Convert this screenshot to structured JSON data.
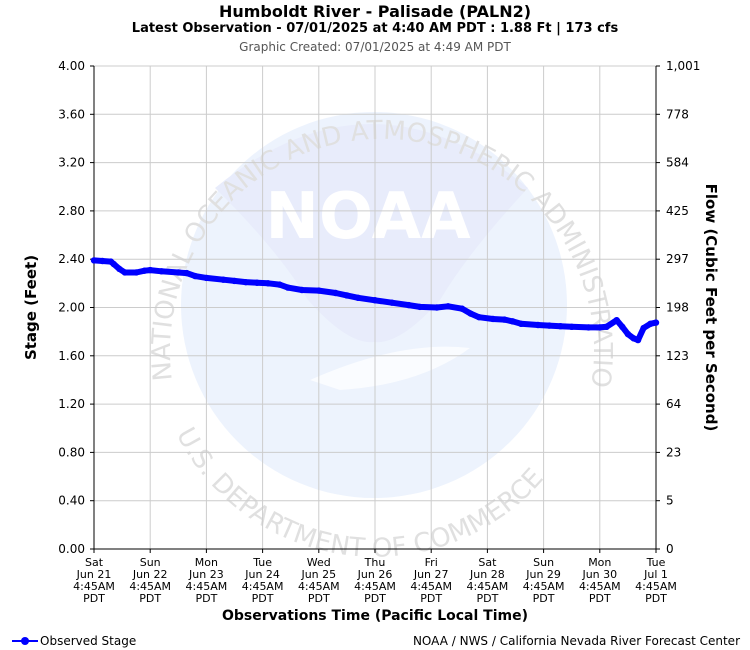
{
  "header": {
    "title": "Humboldt River - Palisade (PALN2)",
    "subtitle": "Latest Observation - 07/01/2025 at 4:40 AM PDT : 1.88 Ft | 173 cfs",
    "created": "Graphic Created: 07/01/2025 at 4:49 AM PDT"
  },
  "footer": {
    "legend_label": "Observed Stage",
    "credit": "NOAA / NWS / California Nevada River Forecast Center"
  },
  "watermark": {
    "logo_text": "NOAA",
    "ring_top": "NATIONAL OCEANIC AND ATMOSPHERIC ADMINISTRATION",
    "ring_bottom": "U.S. DEPARTMENT OF COMMERCE"
  },
  "colors": {
    "series": "#0000ff",
    "grid": "#cccccc",
    "watermark": "#e8ecfb"
  },
  "chart_data": {
    "type": "line",
    "xlabel": "Observations Time (Pacific Local Time)",
    "ylabel": "Stage (Feet)",
    "y2label": "Flow (Cubic Feet per Second)",
    "ylim": [
      0,
      4
    ],
    "xlim_days": [
      0,
      10
    ],
    "grid": true,
    "y_ticks": [
      "0.00",
      "0.40",
      "0.80",
      "1.20",
      "1.60",
      "2.00",
      "2.40",
      "2.80",
      "3.20",
      "3.60",
      "4.00"
    ],
    "y2_ticks": [
      "0",
      "5",
      "23",
      "64",
      "123",
      "198",
      "297",
      "425",
      "584",
      "778",
      "1,001"
    ],
    "x_ticks": [
      [
        "Sat",
        "Jun 21",
        "4:45AM",
        "PDT"
      ],
      [
        "Sun",
        "Jun 22",
        "4:45AM",
        "PDT"
      ],
      [
        "Mon",
        "Jun 23",
        "4:45AM",
        "PDT"
      ],
      [
        "Tue",
        "Jun 24",
        "4:45AM",
        "PDT"
      ],
      [
        "Wed",
        "Jun 25",
        "4:45AM",
        "PDT"
      ],
      [
        "Thu",
        "Jun 26",
        "4:45AM",
        "PDT"
      ],
      [
        "Fri",
        "Jun 27",
        "4:45AM",
        "PDT"
      ],
      [
        "Sat",
        "Jun 28",
        "4:45AM",
        "PDT"
      ],
      [
        "Sun",
        "Jun 29",
        "4:45AM",
        "PDT"
      ],
      [
        "Mon",
        "Jun 30",
        "4:45AM",
        "PDT"
      ],
      [
        "Tue",
        "Jul 1",
        "4:45AM",
        "PDT"
      ]
    ],
    "series": [
      {
        "name": "Observed Stage",
        "points": [
          [
            0.0,
            2.39
          ],
          [
            0.15,
            2.385
          ],
          [
            0.3,
            2.38
          ],
          [
            0.35,
            2.36
          ],
          [
            0.45,
            2.32
          ],
          [
            0.55,
            2.29
          ],
          [
            0.75,
            2.29
          ],
          [
            0.9,
            2.305
          ],
          [
            1.0,
            2.31
          ],
          [
            1.2,
            2.3
          ],
          [
            1.5,
            2.29
          ],
          [
            1.65,
            2.285
          ],
          [
            1.8,
            2.26
          ],
          [
            2.0,
            2.245
          ],
          [
            2.3,
            2.23
          ],
          [
            2.5,
            2.22
          ],
          [
            2.7,
            2.21
          ],
          [
            2.9,
            2.205
          ],
          [
            3.1,
            2.2
          ],
          [
            3.3,
            2.19
          ],
          [
            3.45,
            2.165
          ],
          [
            3.7,
            2.145
          ],
          [
            4.0,
            2.14
          ],
          [
            4.3,
            2.12
          ],
          [
            4.5,
            2.1
          ],
          [
            4.7,
            2.08
          ],
          [
            5.0,
            2.06
          ],
          [
            5.3,
            2.04
          ],
          [
            5.6,
            2.02
          ],
          [
            5.8,
            2.005
          ],
          [
            6.1,
            2.0
          ],
          [
            6.3,
            2.01
          ],
          [
            6.55,
            1.99
          ],
          [
            6.7,
            1.95
          ],
          [
            6.85,
            1.92
          ],
          [
            7.1,
            1.905
          ],
          [
            7.3,
            1.9
          ],
          [
            7.45,
            1.885
          ],
          [
            7.6,
            1.865
          ],
          [
            7.9,
            1.855
          ],
          [
            8.1,
            1.85
          ],
          [
            8.3,
            1.845
          ],
          [
            8.5,
            1.84
          ],
          [
            8.8,
            1.835
          ],
          [
            9.0,
            1.835
          ],
          [
            9.12,
            1.84
          ],
          [
            9.3,
            1.895
          ],
          [
            9.4,
            1.84
          ],
          [
            9.5,
            1.78
          ],
          [
            9.6,
            1.745
          ],
          [
            9.68,
            1.73
          ],
          [
            9.78,
            1.83
          ],
          [
            9.9,
            1.865
          ],
          [
            10.0,
            1.875
          ]
        ]
      }
    ]
  }
}
